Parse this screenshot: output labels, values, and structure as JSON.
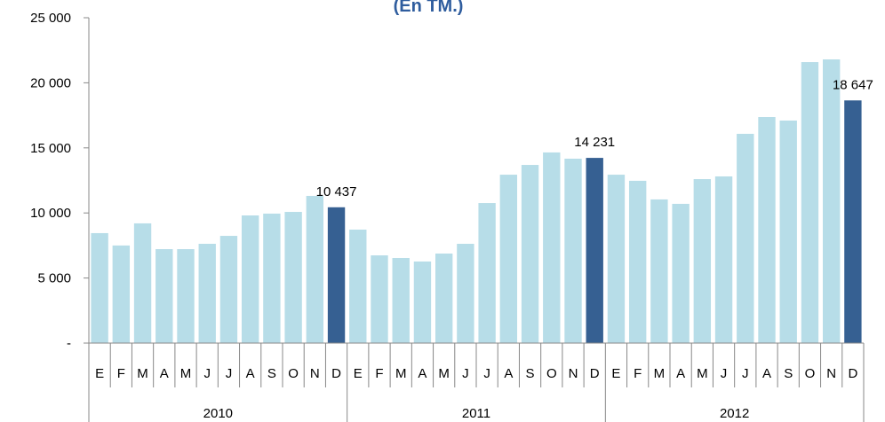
{
  "chart_data": {
    "type": "bar",
    "title": "(En TM.)",
    "categories": [
      "E",
      "F",
      "M",
      "A",
      "M",
      "J",
      "J",
      "A",
      "S",
      "O",
      "N",
      "D",
      "E",
      "F",
      "M",
      "A",
      "M",
      "J",
      "J",
      "A",
      "S",
      "O",
      "N",
      "D",
      "E",
      "F",
      "M",
      "A",
      "M",
      "J",
      "J",
      "A",
      "S",
      "O",
      "N",
      "D"
    ],
    "years": [
      "2010",
      "2011",
      "2012"
    ],
    "values": [
      8450,
      7500,
      9200,
      7220,
      7220,
      7630,
      8240,
      9810,
      9950,
      10080,
      11310,
      10437,
      8720,
      6740,
      6540,
      6270,
      6880,
      7630,
      10760,
      12940,
      13690,
      14650,
      14170,
      14231,
      12940,
      12470,
      11040,
      10700,
      12600,
      12810,
      16080,
      17370,
      17100,
      21590,
      21800,
      18647
    ],
    "value_labels": [
      null,
      null,
      null,
      null,
      null,
      null,
      null,
      null,
      null,
      null,
      null,
      "10 437",
      null,
      null,
      null,
      null,
      null,
      null,
      null,
      null,
      null,
      null,
      null,
      "14 231",
      null,
      null,
      null,
      null,
      null,
      null,
      null,
      null,
      null,
      null,
      null,
      "18 647"
    ],
    "colors": [
      "#b7dde8",
      "#b7dde8",
      "#b7dde8",
      "#b7dde8",
      "#b7dde8",
      "#b7dde8",
      "#b7dde8",
      "#b7dde8",
      "#b7dde8",
      "#b7dde8",
      "#b7dde8",
      "#366092",
      "#b7dde8",
      "#b7dde8",
      "#b7dde8",
      "#b7dde8",
      "#b7dde8",
      "#b7dde8",
      "#b7dde8",
      "#b7dde8",
      "#b7dde8",
      "#b7dde8",
      "#b7dde8",
      "#366092",
      "#b7dde8",
      "#b7dde8",
      "#b7dde8",
      "#b7dde8",
      "#b7dde8",
      "#b7dde8",
      "#b7dde8",
      "#b7dde8",
      "#b7dde8",
      "#b7dde8",
      "#b7dde8",
      "#366092"
    ],
    "ylim": [
      0,
      25000
    ],
    "yticks": [
      {
        "value": 0,
        "label": "-"
      },
      {
        "value": 5000,
        "label": "5 000"
      },
      {
        "value": 10000,
        "label": "10 000"
      },
      {
        "value": 15000,
        "label": "15 000"
      },
      {
        "value": 20000,
        "label": "20 000"
      },
      {
        "value": 25000,
        "label": "25 000"
      }
    ],
    "grid": false
  }
}
